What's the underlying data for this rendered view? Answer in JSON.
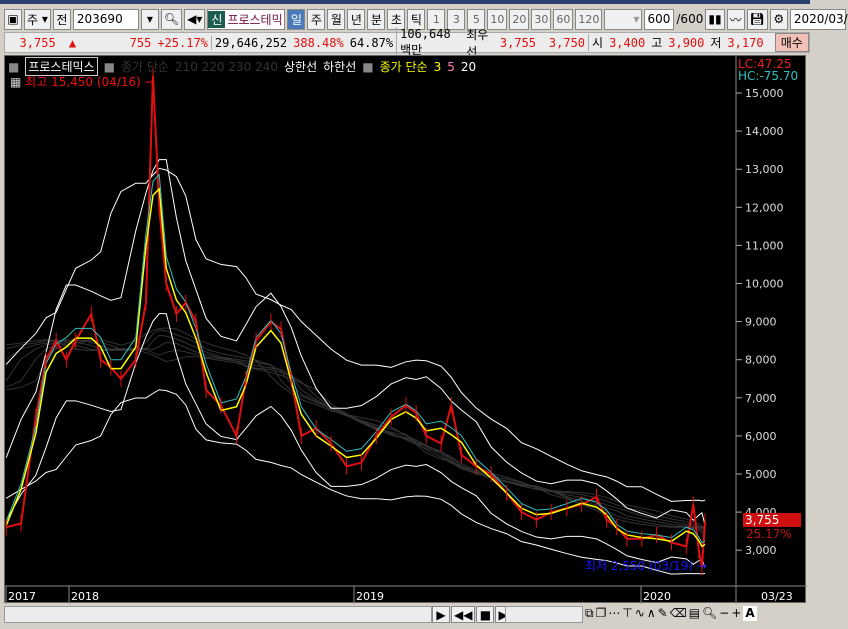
{
  "toolbar": {
    "type": "주",
    "prev": "전",
    "code": "203690",
    "stock_badge": "신",
    "stock_name": "프로스테믹",
    "periods": [
      "일",
      "주",
      "월",
      "년",
      "분",
      "초",
      "틱"
    ],
    "active_period": "일",
    "nums": [
      "1",
      "3",
      "5",
      "10",
      "20",
      "30",
      "60",
      "120"
    ],
    "count": "600",
    "count_total": "/600",
    "date": "2020/03/"
  },
  "quote": {
    "price": "3,755",
    "arrow": "▲",
    "change": "755",
    "change_pct": "+25.17%",
    "volume": "29,646,252",
    "vol_ratio": "388.48%",
    "turnover": "64.87%",
    "amount": "106,648백만",
    "best_label": "최우선",
    "ask": "3,755",
    "bid": "3,750",
    "open_label": "시",
    "open": "3,400",
    "high_label": "고",
    "high": "3,900",
    "low_label": "저",
    "low": "3,170",
    "buy": "매수"
  },
  "legend": {
    "name": "프로스테믹스",
    "dim_label": "종가 단순",
    "dim_periods": "210 220 230 240",
    "upper": "상한선",
    "lower": "하한선",
    "ma_label": "종가 단순",
    "ma": [
      "3",
      "5",
      "20"
    ]
  },
  "annotations": {
    "high": "최고 15,450 (04/16)",
    "low": "최저 2,550 (03/19)",
    "lc": "LC:47.25",
    "hc": "HC:-75.70",
    "last_price": "3,755",
    "last_pct": "25.17%"
  },
  "colors": {
    "up": "#e01010",
    "ma3": "#ffff00",
    "ma5": "#ff80c0",
    "ma20": "#ffffff",
    "low": "#1010ff"
  },
  "chart_data": {
    "type": "line",
    "ylim": [
      2200,
      16000
    ],
    "yticks": [
      "3,000",
      "4,000",
      "5,000",
      "6,000",
      "7,000",
      "8,000",
      "9,000",
      "10,000",
      "11,000",
      "12,000",
      "13,000",
      "14,000",
      "15,000"
    ],
    "xticks": [
      "2017",
      "2018",
      "2019",
      "2020"
    ],
    "last_date": "03/23",
    "series": [
      {
        "values": [
          [
            "2017-10-10",
            3600
          ],
          [
            "2017-10-29",
            3700
          ],
          [
            "2017-11-17",
            6500
          ],
          [
            "2017-11-30",
            8000
          ],
          [
            "2017-12-13",
            8500
          ],
          [
            "2017-12-26",
            8000
          ],
          [
            "2018-01-07",
            8500
          ],
          [
            "2018-01-27",
            9200
          ],
          [
            "2018-02-08",
            8000
          ],
          [
            "2018-02-21",
            7800
          ],
          [
            "2018-03-06",
            7500
          ],
          [
            "2018-03-25",
            8000
          ],
          [
            "2018-04-07",
            9500
          ],
          [
            "2018-04-16",
            15450
          ],
          [
            "2018-04-24",
            12000
          ],
          [
            "2018-05-03",
            10000
          ],
          [
            "2018-05-16",
            9200
          ],
          [
            "2018-05-28",
            9500
          ],
          [
            "2018-06-10",
            9000
          ],
          [
            "2018-06-23",
            7200
          ],
          [
            "2018-07-12",
            6800
          ],
          [
            "2018-08-01",
            6000
          ],
          [
            "2018-08-13",
            7500
          ],
          [
            "2018-08-26",
            8500
          ],
          [
            "2018-09-14",
            9000
          ],
          [
            "2018-09-27",
            8800
          ],
          [
            "2018-10-10",
            7500
          ],
          [
            "2018-10-23",
            6000
          ],
          [
            "2018-11-11",
            6200
          ],
          [
            "2018-11-30",
            5800
          ],
          [
            "2018-12-20",
            5200
          ],
          [
            "2019-01-08",
            5300
          ],
          [
            "2019-01-27",
            6000
          ],
          [
            "2019-02-15",
            6500
          ],
          [
            "2019-03-06",
            6800
          ],
          [
            "2019-03-19",
            6600
          ],
          [
            "2019-04-01",
            6000
          ],
          [
            "2019-04-20",
            5800
          ],
          [
            "2019-05-03",
            6800
          ],
          [
            "2019-05-16",
            5500
          ],
          [
            "2019-06-04",
            5200
          ],
          [
            "2019-06-23",
            5000
          ],
          [
            "2019-07-13",
            4500
          ],
          [
            "2019-08-01",
            4000
          ],
          [
            "2019-08-20",
            3800
          ],
          [
            "2019-09-08",
            4000
          ],
          [
            "2019-09-28",
            4100
          ],
          [
            "2019-10-17",
            4200
          ],
          [
            "2019-11-05",
            4400
          ],
          [
            "2019-11-18",
            3800
          ],
          [
            "2019-12-01",
            3600
          ],
          [
            "2019-12-14",
            3300
          ],
          [
            "2020-01-02",
            3300
          ],
          [
            "2020-01-21",
            3400
          ],
          [
            "2020-02-09",
            3200
          ],
          [
            "2020-02-28",
            3100
          ],
          [
            "2020-03-08",
            4200
          ],
          [
            "2020-03-15",
            3000
          ],
          [
            "2020-03-19",
            2550
          ],
          [
            "2020-03-23",
            3755
          ]
        ]
      }
    ]
  }
}
